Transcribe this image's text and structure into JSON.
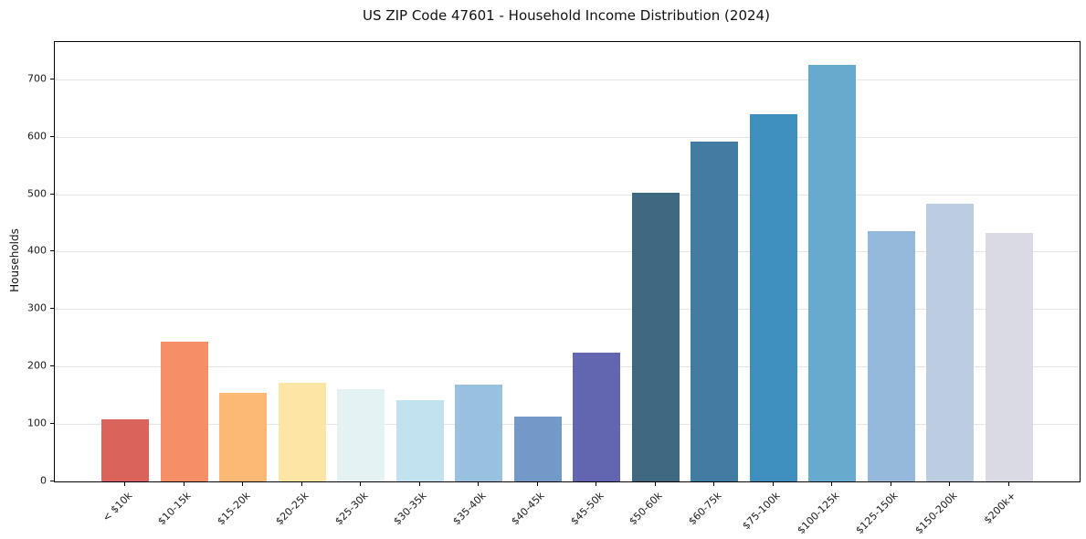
{
  "page": {
    "background_color": "#ffffff"
  },
  "chart_data": {
    "type": "bar",
    "title": "US ZIP Code 47601 - Household Income Distribution (2024)",
    "xlabel": "",
    "ylabel": "Households",
    "categories": [
      "< $10k",
      "$10-15k",
      "$15-20k",
      "$20-25k",
      "$25-30k",
      "$30-35k",
      "$35-40k",
      "$40-45k",
      "$45-50k",
      "$50-60k",
      "$60-75k",
      "$75-100k",
      "$100-125k",
      "$125-150k",
      "$150-200k",
      "$200k+"
    ],
    "values": [
      108,
      243,
      155,
      171,
      161,
      141,
      168,
      113,
      224,
      503,
      592,
      640,
      726,
      436,
      483,
      433
    ],
    "bar_colors": [
      "#d85c52",
      "#f58860",
      "#fbb56e",
      "#fde4a0",
      "#e4f1f3",
      "#bfe0ee",
      "#92bedd",
      "#6b93c5",
      "#5a5dac",
      "#35617a",
      "#38759d",
      "#368abc",
      "#5fa5cb",
      "#8fb5d9",
      "#b8c9df",
      "#d7d8e3"
    ],
    "yticks": [
      0,
      100,
      200,
      300,
      400,
      500,
      600,
      700
    ],
    "ylim": [
      0,
      765
    ],
    "grid": "horizontal-only",
    "legend_position": "none",
    "axis_color": "#000000",
    "gridline_color": "#e6e6e6",
    "tick_text_color": "#1a1a1a",
    "x_tick_rotation_deg": 45
  }
}
